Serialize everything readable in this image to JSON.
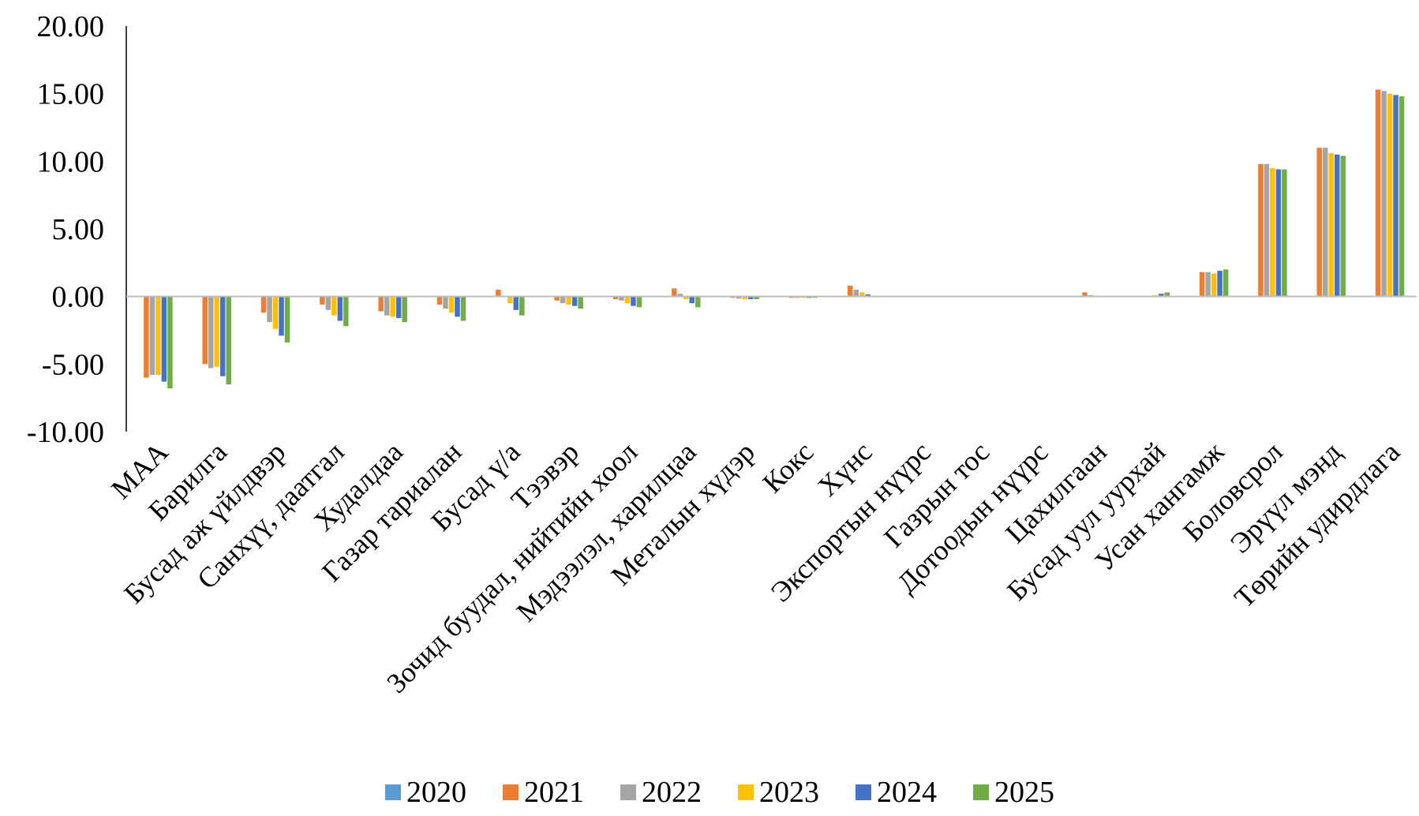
{
  "chart_data": {
    "type": "bar",
    "title": "",
    "xlabel": "",
    "ylabel": "",
    "ylim": [
      -10,
      20
    ],
    "yticks": [
      "20.00",
      "15.00",
      "10.00",
      "5.00",
      "0.00",
      "-5.00",
      "-10.00"
    ],
    "ytick_values": [
      20,
      15,
      10,
      5,
      0,
      -5,
      -10
    ],
    "grid": false,
    "legend_position": "bottom",
    "categories": [
      "МАА",
      "Барилга",
      "Бусад аж үйлдвэр",
      "Санхүү, даатгал",
      "Худалдаа",
      "Газар тариалан",
      "Бусад ү/а",
      "Тээвэр",
      "Зочид буудал, нийтийн хоол",
      "Мэдээлэл, харилцаа",
      "Металын хүдэр",
      "Кокс",
      "Хүнс",
      "Экспортын нүүрс",
      "Газрын тос",
      "Дотоодын нүүрс",
      "Цахилгаан",
      "Бусад уул уурхай",
      "Усан хангамж",
      "Боловсрол",
      "Эрүүл мэнд",
      "Төрийн удирдлага"
    ],
    "series": [
      {
        "name": "2020",
        "color": "#5b9bd5",
        "values": [
          0,
          0,
          0,
          0,
          0,
          0,
          0,
          0,
          0,
          0,
          0,
          0,
          0,
          0,
          0,
          0,
          0,
          0,
          0,
          0,
          0,
          0
        ]
      },
      {
        "name": "2021",
        "color": "#ed7d31",
        "values": [
          -6.0,
          -5.0,
          -1.2,
          -0.6,
          -1.1,
          -0.6,
          0.5,
          -0.3,
          -0.2,
          0.6,
          -0.1,
          -0.1,
          0.8,
          0,
          0,
          0,
          0.3,
          0,
          1.8,
          9.8,
          11.0,
          15.3
        ]
      },
      {
        "name": "2022",
        "color": "#a5a5a5",
        "values": [
          -5.8,
          -5.3,
          -1.9,
          -1.0,
          -1.4,
          -0.9,
          0,
          -0.5,
          -0.3,
          0.2,
          -0.15,
          -0.1,
          0.5,
          0,
          0,
          0,
          0.1,
          0,
          1.8,
          9.8,
          11.0,
          15.2
        ]
      },
      {
        "name": "2023",
        "color": "#ffc000",
        "values": [
          -5.8,
          -5.2,
          -2.4,
          -1.4,
          -1.5,
          -1.2,
          -0.5,
          -0.6,
          -0.5,
          -0.2,
          -0.2,
          -0.1,
          0.3,
          0,
          0,
          0,
          0,
          0.1,
          1.7,
          9.5,
          10.6,
          15.0
        ]
      },
      {
        "name": "2024",
        "color": "#4472c4",
        "values": [
          -6.3,
          -5.9,
          -2.9,
          -1.8,
          -1.6,
          -1.5,
          -1.0,
          -0.7,
          -0.7,
          -0.5,
          -0.2,
          -0.1,
          0.15,
          0,
          0,
          0,
          0,
          0.2,
          1.9,
          9.4,
          10.5,
          14.9
        ]
      },
      {
        "name": "2025",
        "color": "#70ad47",
        "values": [
          -6.8,
          -6.5,
          -3.4,
          -2.2,
          -1.9,
          -1.8,
          -1.4,
          -0.9,
          -0.8,
          -0.8,
          -0.2,
          -0.1,
          0.05,
          0,
          0,
          0,
          0,
          0.3,
          2.0,
          9.4,
          10.4,
          14.8
        ]
      }
    ]
  }
}
